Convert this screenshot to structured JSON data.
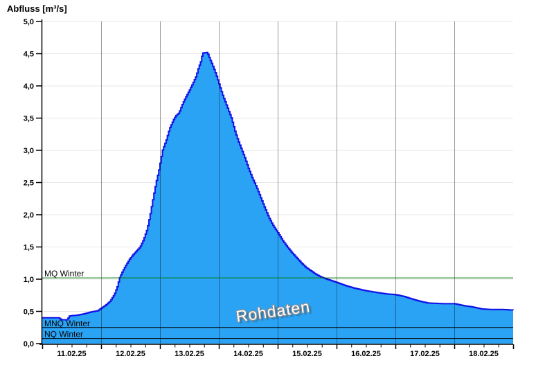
{
  "title": "Abfluss [m³/s]",
  "watermark": "Rohdaten",
  "chart_data": {
    "type": "area",
    "title": "Abfluss [m³/s]",
    "ylabel": "Abfluss [m³/s]",
    "ylim": [
      0,
      5
    ],
    "ytick_step": 0.5,
    "yticks": {
      "values": [
        5.0,
        4.5,
        4.0,
        3.5,
        3.0,
        2.5,
        2.0,
        1.5,
        1.0,
        0.5,
        0.0
      ],
      "labels": [
        "5,0",
        "4,5",
        "4,0",
        "3,5",
        "3,0",
        "2,5",
        "2,0",
        "1,5",
        "1,0",
        "0,5",
        "0,0"
      ]
    },
    "x_axis": {
      "start_label": "11.02.25",
      "days": 8,
      "minor_tick_hours": 6,
      "tick_labels": [
        "11.02.25",
        "12.02.25",
        "13.02.25",
        "14.02.25",
        "15.02.25",
        "16.02.25",
        "17.02.25",
        "18.02.25"
      ]
    },
    "grid": {
      "horizontal": true,
      "vertical_day_lines": true
    },
    "reference_lines": [
      {
        "label": "MQ Winter",
        "value": 1.02,
        "color": "#007a00"
      },
      {
        "label": "MNQ Winter",
        "value": 0.25,
        "color": "#000000"
      },
      {
        "label": "NQ Winter",
        "value": 0.08,
        "color": "#000000"
      }
    ],
    "series": [
      {
        "name": "Rohdaten",
        "x_days": [
          0,
          0.28,
          0.32,
          0.42,
          0.46,
          0.58,
          0.7,
          0.82,
          0.94,
          1,
          1.08,
          1.15,
          1.22,
          1.27,
          1.31,
          1.36,
          1.42,
          1.48,
          1.54,
          1.6,
          1.66,
          1.72,
          1.78,
          1.83,
          1.88,
          1.93,
          1.98,
          2.04,
          2.1,
          2.16,
          2.24,
          2.28,
          2.32,
          2.37,
          2.42,
          2.49,
          2.55,
          2.61,
          2.65,
          2.69,
          2.72,
          2.8,
          2.83,
          2.87,
          2.92,
          2.97,
          3.01,
          3.06,
          3.11,
          3.16,
          3.21,
          3.27,
          3.32,
          3.38,
          3.44,
          3.5,
          3.57,
          3.64,
          3.71,
          3.78,
          3.85,
          3.92,
          4,
          4.08,
          4.16,
          4.24,
          4.32,
          4.4,
          4.48,
          4.56,
          4.64,
          4.72,
          4.8,
          4.9,
          5,
          5.15,
          5.3,
          5.5,
          5.7,
          5.85,
          6,
          6.15,
          6.25,
          6.4,
          6.55,
          6.8,
          7,
          7.15,
          7.3,
          7.45,
          7.6,
          7.8,
          8
        ],
        "values": [
          0.4,
          0.4,
          0.37,
          0.37,
          0.43,
          0.44,
          0.46,
          0.49,
          0.51,
          0.55,
          0.6,
          0.66,
          0.76,
          0.88,
          1.02,
          1.12,
          1.22,
          1.31,
          1.38,
          1.44,
          1.5,
          1.62,
          1.78,
          2,
          2.26,
          2.5,
          2.7,
          3,
          3.15,
          3.34,
          3.5,
          3.55,
          3.58,
          3.7,
          3.8,
          3.92,
          4.03,
          4.15,
          4.28,
          4.38,
          4.51,
          4.52,
          4.45,
          4.36,
          4.25,
          4.12,
          4,
          3.86,
          3.74,
          3.62,
          3.5,
          3.3,
          3.16,
          3.02,
          2.88,
          2.72,
          2.56,
          2.42,
          2.26,
          2.1,
          1.95,
          1.83,
          1.72,
          1.6,
          1.5,
          1.41,
          1.33,
          1.25,
          1.18,
          1.13,
          1.08,
          1.04,
          1.01,
          0.98,
          0.95,
          0.9,
          0.86,
          0.82,
          0.79,
          0.77,
          0.76,
          0.73,
          0.7,
          0.66,
          0.63,
          0.62,
          0.62,
          0.59,
          0.57,
          0.54,
          0.53,
          0.53,
          0.52
        ]
      }
    ],
    "colors": {
      "area_fill": "#2ba3f5",
      "area_stroke": "#1111e8",
      "h_grid": "#e7e7e7",
      "v_grid": "rgba(0,0,0,0.40)",
      "axis": "#000000",
      "mq_line": "#007a00",
      "watermark_text": "#ffffff"
    }
  }
}
